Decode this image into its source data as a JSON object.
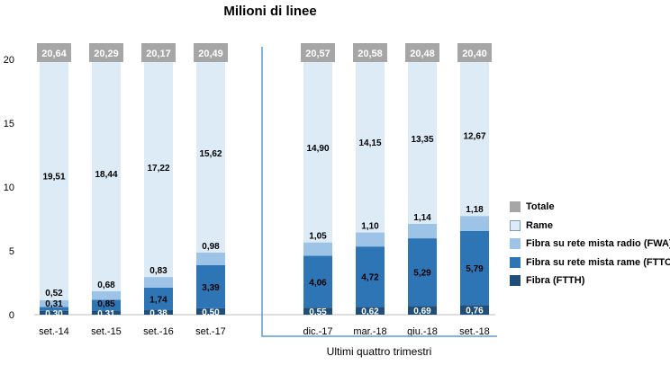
{
  "chart_data": {
    "type": "bar",
    "stacked": true,
    "title": "Milioni di linee",
    "categories": [
      "set.-14",
      "set.-15",
      "set.-16",
      "set.-17",
      "dic.-17",
      "mar.-18",
      "giu.-18",
      "set.-18"
    ],
    "totals": [
      "20,64",
      "20,29",
      "20,17",
      "20,49",
      "20,57",
      "20,58",
      "20,48",
      "20,40"
    ],
    "total_values": [
      20.64,
      20.29,
      20.17,
      20.49,
      20.57,
      20.58,
      20.48,
      20.4
    ],
    "series": [
      {
        "name": "Fibra (FTTH)",
        "color": "#1f4e79",
        "values": [
          0.3,
          0.31,
          0.38,
          0.5,
          0.55,
          0.62,
          0.69,
          0.76
        ],
        "labels": [
          "0,30",
          "0,31",
          "0,38",
          "0,50",
          "0,55",
          "0,62",
          "0,69",
          "0,76"
        ]
      },
      {
        "name": "Fibra su rete mista rame (FTTC)",
        "color": "#2e75b6",
        "values": [
          0.31,
          0.85,
          1.74,
          3.39,
          4.06,
          4.72,
          5.29,
          5.79
        ],
        "labels": [
          "0,31",
          "0,85",
          "1,74",
          "3,39",
          "4,06",
          "4,72",
          "5,29",
          "5,79"
        ]
      },
      {
        "name": "Fibra su rete mista radio (FWA)",
        "color": "#9dc3e6",
        "values": [
          0.52,
          0.68,
          0.83,
          0.98,
          1.05,
          1.1,
          1.14,
          1.18
        ],
        "labels": [
          "0,52",
          "0,68",
          "0,83",
          "0,98",
          "1,05",
          "1,10",
          "1,14",
          "1,18"
        ]
      },
      {
        "name": "Rame",
        "color": "#ddebf7",
        "values": [
          19.51,
          18.44,
          17.22,
          15.62,
          14.9,
          14.15,
          13.35,
          12.67
        ],
        "labels": [
          "19,51",
          "18,44",
          "17,22",
          "15,62",
          "14,90",
          "14,15",
          "13,35",
          "12,67"
        ]
      }
    ],
    "legend": [
      {
        "label": "Totale",
        "color": "#a6a6a6"
      },
      {
        "label": "Rame",
        "color": "#ddebf7"
      },
      {
        "label": "Fibra su rete mista radio (FWA)",
        "color": "#9dc3e6"
      },
      {
        "label": "Fibra su rete mista rame (FTTC)",
        "color": "#2e75b6"
      },
      {
        "label": "Fibra (FTTH)",
        "color": "#1f4e79"
      }
    ],
    "legend_position": "right",
    "ylim": [
      0,
      22
    ],
    "yticks": [
      0,
      5,
      10,
      15,
      20
    ],
    "grid": false,
    "xlabel": "",
    "ylabel": "",
    "annotation": "Ultimi quattro trimestri",
    "annotation_bracket_categories": [
      "dic.-17",
      "mar.-18",
      "giu.-18",
      "set.-18"
    ],
    "colors": {
      "total_box": "#a6a6a6",
      "total_text": "#ffffff",
      "bracket": "#5b9bd5",
      "axis": "#bfbfbf"
    }
  }
}
